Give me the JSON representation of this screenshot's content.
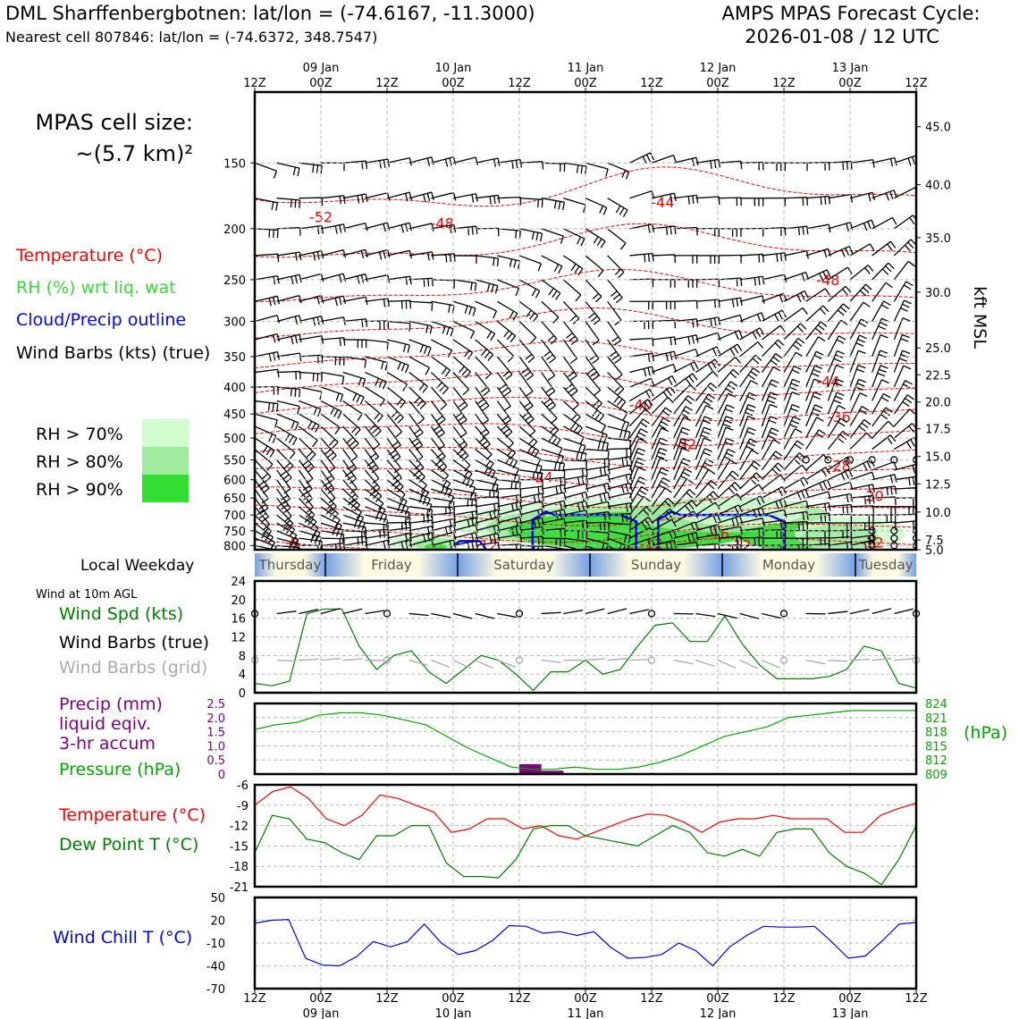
{
  "header": {
    "title_left": "DML Sharffenbergbotnen: lat/lon = (-74.6167, -11.3000)",
    "subtitle_left": "Nearest cell 807846: lat/lon = (-74.6372, 348.7547)",
    "title_right_1": "AMPS MPAS Forecast Cycle:",
    "title_right_2": "2026-01-08 / 12 UTC"
  },
  "colors": {
    "temperature": "#ff0000",
    "rh": "#33dd33",
    "cloud": "#0000ff",
    "wind": "#000000",
    "wind_grid": "#aaaaaa",
    "precip": "#800080",
    "pressure": "#00aa00",
    "wind_spd": "#008000",
    "dewpoint": "#008000",
    "wind_chill": "#0000ff",
    "rh70": "#d0fcd0",
    "rh80": "#a0eaa0",
    "rh90": "#33dd33",
    "weekday_blue": "#77a0e6",
    "weekday_yellow": "#fffbe0"
  },
  "labels": {
    "cell_size_1": "MPAS cell size:",
    "cell_size_2": "~(5.7 km)²",
    "legend_temp": "Temperature (°C)",
    "legend_rh": "RH (%) wrt liq. wat",
    "legend_cloud": "Cloud/Precip outline",
    "legend_wind": "Wind Barbs (kts) (true)",
    "rh70": "RH > 70%",
    "rh80": "RH > 80%",
    "rh90": "RH > 90%",
    "kft_msl": "kft MSL",
    "local_weekday": "Local Weekday",
    "wind_10m": "Wind at 10m AGL",
    "wind_spd": "Wind Spd (kts)",
    "wind_barbs_true": "Wind Barbs (true)",
    "wind_barbs_grid": "Wind Barbs (grid)",
    "precip_1": "Precip (mm)",
    "precip_2": "liquid eqiv.",
    "precip_3": "3-hr accum",
    "pressure": "Pressure (hPa)",
    "hpa": "(hPa)",
    "temperature": "Temperature (°C)",
    "dewpoint": "Dew Point T (°C)",
    "wind_chill": "Wind Chill T (°C)"
  },
  "chart_data": {
    "type": "meteogram",
    "time_ticks": [
      "12Z",
      "00Z",
      "12Z",
      "00Z",
      "12Z",
      "00Z",
      "12Z",
      "00Z",
      "12Z",
      "00Z",
      "12Z"
    ],
    "date_ticks": [
      "09 Jan",
      "10 Jan",
      "11 Jan",
      "12 Jan",
      "13 Jan"
    ],
    "weekdays": [
      "Thursday",
      "Friday",
      "Saturday",
      "Sunday",
      "Monday",
      "Tuesday"
    ],
    "steps_3hr": 31,
    "cross_section": {
      "pressure_ticks": [
        150,
        200,
        250,
        300,
        350,
        400,
        450,
        500,
        550,
        600,
        650,
        700,
        750,
        800
      ],
      "plim": [
        110,
        815
      ],
      "height_ticks": [
        "45.0",
        "40.0",
        "35.0",
        "30.0",
        "25.0",
        "22.5",
        "20.0",
        "17.5",
        "15.0",
        "12.5",
        "10.0",
        "7.5",
        "5.0"
      ],
      "height_tick_pressures": [
        128,
        165,
        208,
        264,
        337,
        379,
        427,
        480,
        542,
        611,
        691,
        781,
        815
      ],
      "temperature_contour_labels": [
        {
          "value": -52,
          "t": 3,
          "p": 190
        },
        {
          "value": -48,
          "t": 8.5,
          "p": 195
        },
        {
          "value": -44,
          "t": 18.5,
          "p": 178
        },
        {
          "value": -48,
          "t": 26,
          "p": 250
        },
        {
          "value": -44,
          "t": 26,
          "p": 390
        },
        {
          "value": -40,
          "t": 17.5,
          "p": 432
        },
        {
          "value": -36,
          "t": 26.5,
          "p": 455
        },
        {
          "value": -32,
          "t": 19.5,
          "p": 513
        },
        {
          "value": -28,
          "t": 26.5,
          "p": 563
        },
        {
          "value": -24,
          "t": 13,
          "p": 592
        },
        {
          "value": -20,
          "t": 28,
          "p": 643
        },
        {
          "value": -16,
          "t": 21,
          "p": 759
        },
        {
          "value": -12,
          "t": 10.5,
          "p": 797
        },
        {
          "value": -12,
          "t": 18,
          "p": 793
        },
        {
          "value": -12,
          "t": 22,
          "p": 797
        },
        {
          "value": -12,
          "t": 28,
          "p": 788
        },
        {
          "value": -8,
          "t": 1.7,
          "p": 788
        }
      ],
      "cloud_outline_times": [
        12.5,
        22.5
      ]
    },
    "surface_wind": {
      "ylim": [
        0,
        24
      ],
      "yticks": [
        0,
        4,
        8,
        12,
        16,
        20,
        24
      ],
      "speed_kts": [
        2,
        1.5,
        2.5,
        17,
        18,
        18,
        10,
        5,
        8,
        9,
        4.5,
        2,
        5,
        8,
        7,
        4,
        0.5,
        4.5,
        4.5,
        7,
        4,
        5,
        10,
        14.5,
        15,
        11,
        11,
        16.5,
        10.5,
        6,
        3,
        3,
        3,
        3.5,
        5,
        10,
        9,
        2,
        1
      ]
    },
    "precip_pressure": {
      "precip_ylim": [
        0,
        2.5
      ],
      "precip_ticks": [
        "0",
        "0.5",
        "1.0",
        "1.5",
        "2.0",
        "2.5"
      ],
      "precip_bars": [
        {
          "t": 12.5,
          "value": 0.35
        },
        {
          "t": 13.5,
          "value": 0.12
        }
      ],
      "pressure_ylim": [
        809,
        824
      ],
      "pressure_ticks": [
        "809",
        "812",
        "815",
        "818",
        "821",
        "824"
      ],
      "pressure_hpa": [
        818.5,
        819.5,
        820,
        821.5,
        822,
        822,
        821.5,
        820.5,
        819.5,
        817,
        814.5,
        812.5,
        810.5,
        810,
        810,
        810.5,
        810,
        810,
        810.5,
        811.5,
        813,
        815,
        817,
        818,
        819,
        821,
        821.5,
        822,
        822.5,
        822.5,
        822.5,
        822.5
      ]
    },
    "temperature_dewpoint": {
      "ylim": [
        -21,
        -6
      ],
      "yticks": [
        "-6",
        "-9",
        "-12",
        "-15",
        "-18",
        "-21"
      ],
      "temperature_c": [
        -9,
        -7,
        -6.3,
        -8,
        -11,
        -12,
        -10.5,
        -7.5,
        -8,
        -9,
        -10,
        -13,
        -12.5,
        -11,
        -11,
        -12.5,
        -12,
        -13.5,
        -14,
        -13,
        -12,
        -11,
        -10.3,
        -10.5,
        -11.5,
        -13,
        -11.5,
        -11,
        -11,
        -10.5,
        -11,
        -11,
        -11,
        -13,
        -13,
        -10.5,
        -9.5,
        -8.7
      ],
      "dewpoint_c": [
        -16,
        -10.5,
        -11,
        -14,
        -14.5,
        -16,
        -17,
        -13.5,
        -13.5,
        -12,
        -12,
        -17.5,
        -19.5,
        -19.5,
        -19.7,
        -17,
        -12.5,
        -12,
        -12,
        -13.5,
        -14,
        -14.5,
        -15,
        -13.5,
        -12,
        -13,
        -16,
        -16.5,
        -15.5,
        -16.5,
        -13,
        -12.5,
        -12.5,
        -16,
        -18,
        -19,
        -20.7,
        -17,
        -12
      ]
    },
    "wind_chill": {
      "ylim": [
        -70,
        50
      ],
      "yticks": [
        "50",
        "20",
        "-10",
        "-40",
        "-70"
      ],
      "wind_chill_c": [
        16,
        20,
        21,
        -30,
        -39,
        -40,
        -28,
        -8,
        -15,
        -8,
        15,
        -10,
        -25,
        -20,
        -7,
        13,
        12,
        3,
        5,
        0,
        5,
        -16,
        -30,
        -29,
        -25,
        -10,
        -20,
        -40,
        -15,
        0,
        12,
        11,
        11,
        12,
        -8,
        -30,
        -27,
        -7,
        15,
        17
      ]
    }
  }
}
